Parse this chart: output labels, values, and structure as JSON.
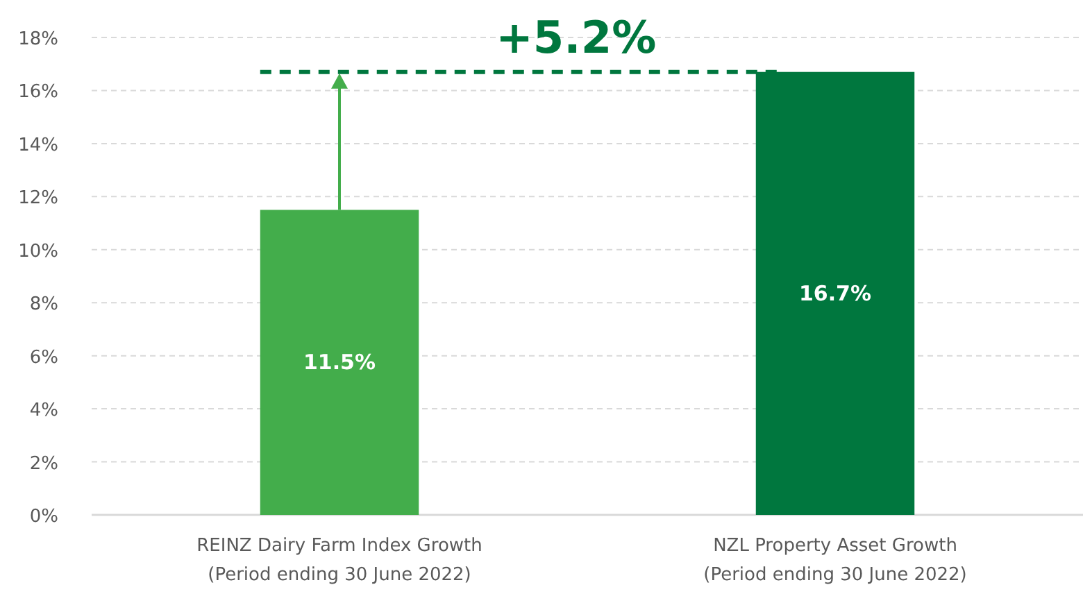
{
  "chart_data": {
    "type": "bar",
    "categories": [
      "REINZ Dairy Farm Index Growth\n(Period ending 30 June 2022)",
      "NZL Property Asset Growth\n(Period ending 30 June 2022)"
    ],
    "values": [
      11.5,
      16.7
    ],
    "colors": [
      "#43ad4b",
      "#00773e"
    ],
    "ylim": [
      0,
      18
    ],
    "yticks": [
      {
        "value": 0,
        "label": "0%"
      },
      {
        "value": 2,
        "label": "2%"
      },
      {
        "value": 4,
        "label": "4%"
      },
      {
        "value": 6,
        "label": "6%"
      },
      {
        "value": 8,
        "label": "8%"
      },
      {
        "value": 10,
        "label": "10%"
      },
      {
        "value": 12,
        "label": "12%"
      },
      {
        "value": 14,
        "label": "14%"
      },
      {
        "value": 16,
        "label": "16%"
      },
      {
        "value": 18,
        "label": "18%"
      }
    ],
    "grid": "y",
    "data_labels": true,
    "value_labels": [
      "11.5%",
      "16.7%"
    ],
    "annotations": [
      "+5.2%"
    ],
    "ref_lines": [
      {
        "axis": "y",
        "value": 16.7,
        "color": "#00773e",
        "line_style": "dashed"
      }
    ]
  }
}
